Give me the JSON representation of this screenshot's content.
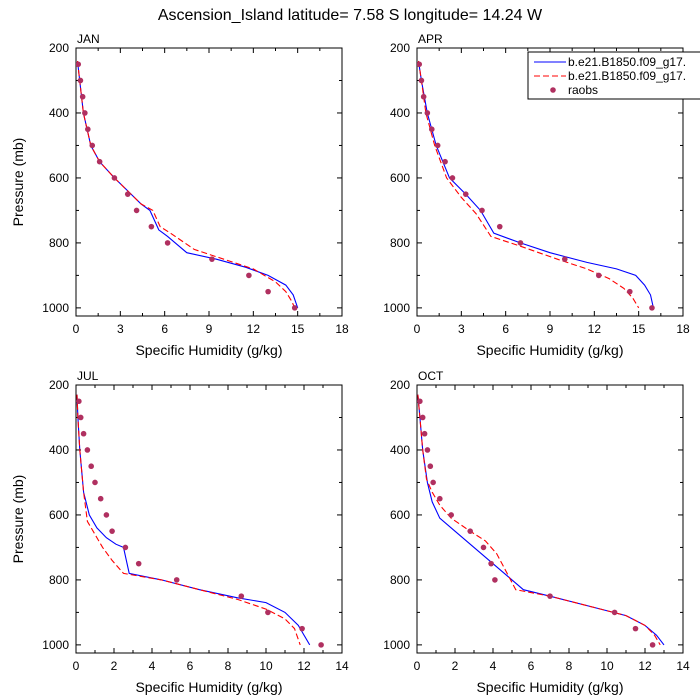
{
  "figure": {
    "title": "Ascension_Island  latitude= 7.58 S longitude= 14.24 W"
  },
  "chart_data": [
    {
      "type": "line",
      "panel_label": "JAN",
      "xlabel": "Specific Humidity (g/kg)",
      "ylabel": "Pressure (mb)",
      "xlim": [
        0,
        18
      ],
      "ylim": [
        200,
        1025
      ],
      "y_reversed": true,
      "xticks": [
        0,
        3,
        6,
        9,
        12,
        15,
        18
      ],
      "yticks": [
        200,
        400,
        600,
        800,
        1000
      ],
      "show_legend": false,
      "series": [
        {
          "name": "b.e21.B1850.f09_g17.",
          "color": "#0000ff",
          "dash": "solid",
          "x": [
            0.1,
            0.25,
            0.5,
            1.0,
            1.6,
            2.6,
            3.5,
            4.4,
            5.0,
            5.6,
            6.2,
            7.5,
            9.5,
            11.5,
            13.0,
            14.2,
            14.7,
            15.0
          ],
          "y": [
            240,
            300,
            400,
            500,
            550,
            600,
            640,
            680,
            700,
            760,
            780,
            830,
            850,
            875,
            900,
            930,
            960,
            1000
          ]
        },
        {
          "name": "b.e21.B1850.f09_g17.",
          "color": "#ff0000",
          "dash": "dashed",
          "x": [
            0.1,
            0.25,
            0.5,
            1.0,
            1.6,
            2.6,
            3.5,
            4.4,
            5.2,
            5.7,
            6.4,
            8.0,
            10.0,
            12.0,
            13.5,
            14.2,
            14.6,
            14.8
          ],
          "y": [
            240,
            300,
            400,
            500,
            550,
            600,
            640,
            680,
            700,
            750,
            770,
            820,
            850,
            880,
            920,
            950,
            980,
            1000
          ]
        },
        {
          "name": "raobs",
          "color": "#b03060",
          "marker": "circle",
          "x": [
            0.15,
            0.3,
            0.45,
            0.6,
            0.8,
            1.1,
            1.6,
            2.6,
            3.5,
            4.1,
            5.1,
            6.2,
            9.2,
            11.7,
            13.0,
            14.8
          ],
          "y": [
            250,
            300,
            350,
            400,
            450,
            500,
            550,
            600,
            650,
            700,
            750,
            800,
            850,
            900,
            950,
            1000
          ]
        }
      ]
    },
    {
      "type": "line",
      "panel_label": "APR",
      "xlabel": "Specific Humidity (g/kg)",
      "ylabel": "",
      "xlim": [
        0,
        18
      ],
      "ylim": [
        200,
        1025
      ],
      "y_reversed": true,
      "xticks": [
        0,
        3,
        6,
        9,
        12,
        15,
        18
      ],
      "yticks": [
        200,
        400,
        600,
        800,
        1000
      ],
      "show_legend": true,
      "series": [
        {
          "name": "b.e21.B1850.f09_g17.",
          "color": "#0000ff",
          "dash": "solid",
          "x": [
            0.1,
            0.3,
            0.7,
            1.3,
            2.2,
            3.3,
            4.3,
            5.2,
            7.0,
            9.0,
            11.5,
            13.5,
            14.8,
            15.4,
            15.8,
            16.0
          ],
          "y": [
            240,
            300,
            400,
            500,
            600,
            650,
            700,
            770,
            800,
            830,
            860,
            880,
            900,
            930,
            960,
            1000
          ]
        },
        {
          "name": "b.e21.B1850.f09_g17.",
          "color": "#ff0000",
          "dash": "dashed",
          "x": [
            0.1,
            0.3,
            0.6,
            1.2,
            2.0,
            3.0,
            4.0,
            5.0,
            7.0,
            9.5,
            11.5,
            13.0,
            14.0,
            14.6,
            15.0
          ],
          "y": [
            240,
            300,
            400,
            500,
            600,
            660,
            710,
            780,
            810,
            850,
            880,
            910,
            940,
            970,
            1000
          ]
        },
        {
          "name": "raobs",
          "color": "#b03060",
          "marker": "circle",
          "x": [
            0.15,
            0.3,
            0.45,
            0.7,
            1.0,
            1.4,
            1.9,
            2.4,
            3.3,
            4.4,
            5.6,
            7.0,
            10.0,
            12.3,
            14.4,
            15.9
          ],
          "y": [
            250,
            300,
            350,
            400,
            450,
            500,
            550,
            600,
            650,
            700,
            750,
            800,
            850,
            900,
            950,
            1000
          ]
        }
      ]
    },
    {
      "type": "line",
      "panel_label": "JUL",
      "xlabel": "Specific Humidity (g/kg)",
      "ylabel": "Pressure (mb)",
      "xlim": [
        0,
        14
      ],
      "ylim": [
        200,
        1025
      ],
      "y_reversed": true,
      "xticks": [
        0,
        2,
        4,
        6,
        8,
        10,
        12,
        14
      ],
      "yticks": [
        200,
        400,
        600,
        800,
        1000
      ],
      "show_legend": false,
      "series": [
        {
          "name": "b.e21.B1850.f09_g17.",
          "color": "#0000ff",
          "dash": "solid",
          "x": [
            0.05,
            0.1,
            0.2,
            0.4,
            0.7,
            1.1,
            1.6,
            2.1,
            2.5,
            2.8,
            4.5,
            6.5,
            8.5,
            10.0,
            11.0,
            11.7,
            12.0,
            12.3
          ],
          "y": [
            230,
            300,
            400,
            530,
            600,
            640,
            670,
            690,
            700,
            780,
            800,
            830,
            855,
            870,
            900,
            940,
            970,
            1000
          ]
        },
        {
          "name": "b.e21.B1850.f09_g17.",
          "color": "#ff0000",
          "dash": "dashed",
          "x": [
            0.05,
            0.1,
            0.2,
            0.4,
            0.6,
            1.0,
            1.4,
            1.9,
            2.5,
            4.5,
            6.5,
            8.5,
            10.0,
            11.0,
            11.5,
            11.8
          ],
          "y": [
            230,
            300,
            400,
            530,
            620,
            660,
            700,
            740,
            780,
            800,
            830,
            860,
            890,
            920,
            950,
            1000
          ]
        },
        {
          "name": "raobs",
          "color": "#b03060",
          "marker": "circle",
          "x": [
            0.15,
            0.25,
            0.4,
            0.6,
            0.8,
            1.0,
            1.3,
            1.6,
            1.9,
            2.6,
            3.3,
            5.3,
            8.7,
            10.1,
            11.9,
            12.9
          ],
          "y": [
            250,
            300,
            350,
            400,
            450,
            500,
            550,
            600,
            650,
            700,
            750,
            800,
            850,
            900,
            950,
            1000
          ]
        }
      ]
    },
    {
      "type": "line",
      "panel_label": "OCT",
      "xlabel": "Specific Humidity (g/kg)",
      "ylabel": "",
      "xlim": [
        0,
        14
      ],
      "ylim": [
        200,
        1025
      ],
      "y_reversed": true,
      "xticks": [
        0,
        2,
        4,
        6,
        8,
        10,
        12,
        14
      ],
      "yticks": [
        200,
        400,
        600,
        800,
        1000
      ],
      "show_legend": false,
      "series": [
        {
          "name": "b.e21.B1850.f09_g17.",
          "color": "#0000ff",
          "dash": "solid",
          "x": [
            0.05,
            0.15,
            0.3,
            0.55,
            0.8,
            1.2,
            2.0,
            3.0,
            4.0,
            5.0,
            5.6,
            7.0,
            9.0,
            11.0,
            12.0,
            12.6,
            13.0
          ],
          "y": [
            230,
            300,
            400,
            500,
            560,
            610,
            650,
            700,
            750,
            800,
            830,
            850,
            880,
            910,
            940,
            970,
            1000
          ]
        },
        {
          "name": "b.e21.B1850.f09_g17.",
          "color": "#ff0000",
          "dash": "dashed",
          "x": [
            0.05,
            0.15,
            0.3,
            0.5,
            0.8,
            1.2,
            1.8,
            2.8,
            3.6,
            4.2,
            5.2,
            7.0,
            9.0,
            11.0,
            12.0,
            12.5,
            12.8
          ],
          "y": [
            230,
            300,
            400,
            490,
            530,
            570,
            610,
            650,
            680,
            720,
            830,
            850,
            880,
            910,
            940,
            970,
            1000
          ]
        },
        {
          "name": "raobs",
          "color": "#b03060",
          "marker": "circle",
          "x": [
            0.15,
            0.3,
            0.4,
            0.55,
            0.7,
            0.85,
            1.2,
            1.8,
            2.8,
            3.5,
            3.9,
            4.1,
            7.0,
            10.4,
            11.5,
            12.4
          ],
          "y": [
            250,
            300,
            350,
            400,
            450,
            500,
            550,
            600,
            650,
            700,
            750,
            800,
            850,
            900,
            950,
            1000
          ]
        }
      ]
    }
  ]
}
